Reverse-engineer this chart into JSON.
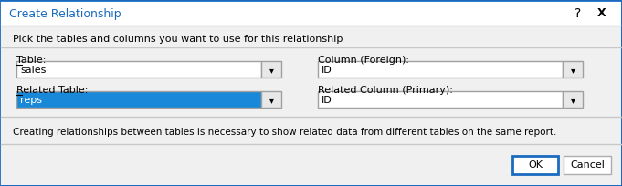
{
  "title": "Create Relationship",
  "bg_color": "#f0f0f0",
  "white": "#ffffff",
  "title_bar_bg": "#ffffff",
  "title_bar_border_top": "#1a6bbf",
  "header_text": "Pick the tables and columns you want to use for this relationship",
  "label_table": "Table:",
  "label_column_foreign": "Column (Foreign):",
  "label_related_table": "Related Table:",
  "label_related_column": "Related Column (Primary):",
  "value_table": "sales",
  "value_column_foreign": "ID",
  "value_related_table": "reps",
  "value_related_column": "ID",
  "footer_text": "Creating relationships between tables is necessary to show related data from different tables on the same report.",
  "btn_ok": "OK",
  "btn_cancel": "Cancel",
  "selected_bg": "#1a88d8",
  "selected_text": "#ffffff",
  "border_color": "#a0a0a0",
  "text_color": "#000000",
  "separator_color": "#c8c8c8",
  "btn_border_ok": "#1a6bbf",
  "btn_border_cancel": "#adadad",
  "dropdown_arrow_bg": "#e8e8e8",
  "underline_color": "#000000",
  "outer_border": "#1a6bbf",
  "title_text_color": "#1a6bbf"
}
